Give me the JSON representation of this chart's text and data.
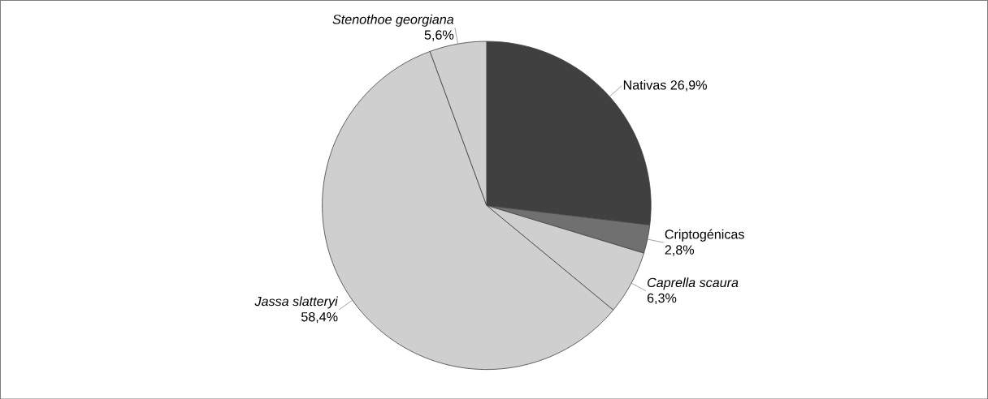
{
  "chart_data": {
    "type": "pie",
    "categories": [
      "Nativas",
      "Criptogénicas",
      "*Caprella scaura*",
      "*Jassa slatteryi*",
      "*Stenothoe georgiana*"
    ],
    "values": [
      26.9,
      2.8,
      6.3,
      58.4,
      5.6
    ],
    "value_labels": [
      "26,9%",
      "2,8%",
      "6,3%",
      "58,4%",
      "5,6%"
    ],
    "colors": [
      "#404040",
      "#707070",
      "#cfcfcf",
      "#cfcfcf",
      "#cfcfcf"
    ]
  }
}
